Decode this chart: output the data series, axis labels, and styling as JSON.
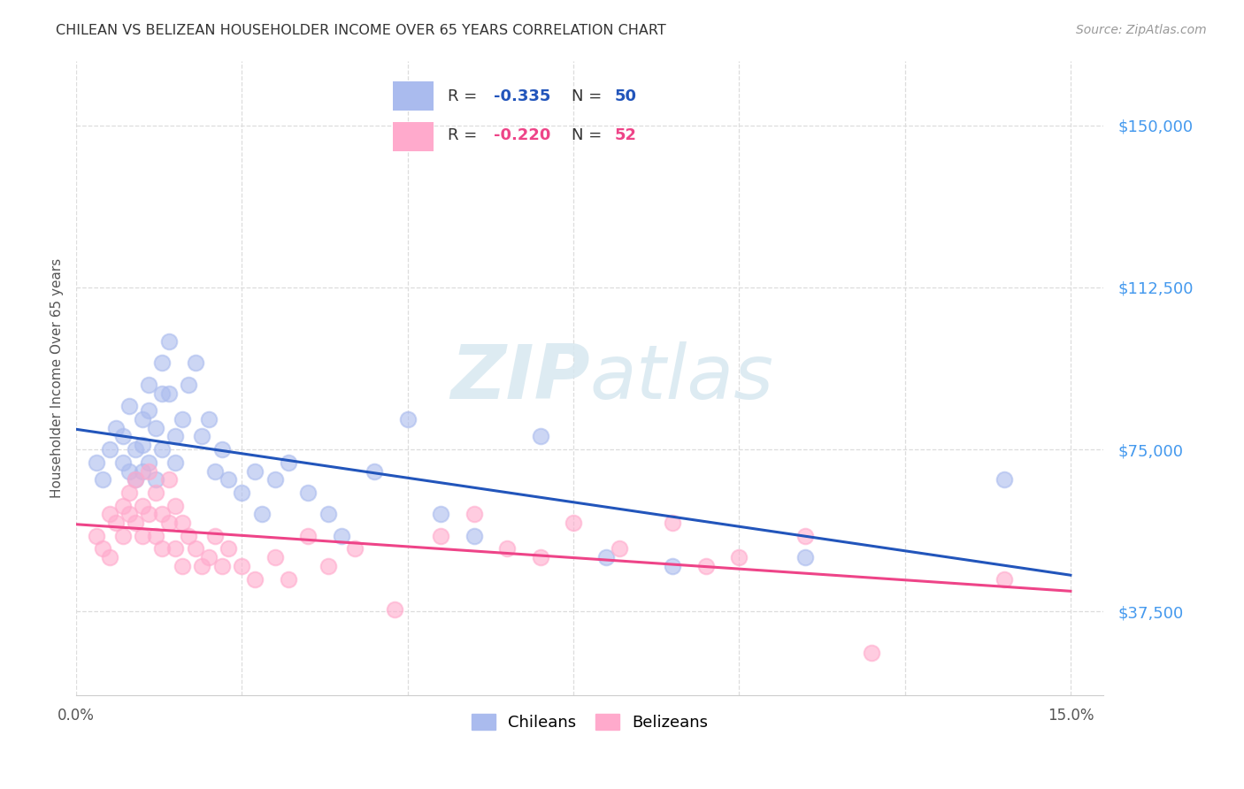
{
  "title": "CHILEAN VS BELIZEAN HOUSEHOLDER INCOME OVER 65 YEARS CORRELATION CHART",
  "source": "Source: ZipAtlas.com",
  "ylabel": "Householder Income Over 65 years",
  "ytick_labels": [
    "$37,500",
    "$75,000",
    "$112,500",
    "$150,000"
  ],
  "ytick_values": [
    37500,
    75000,
    112500,
    150000
  ],
  "ylim": [
    18000,
    165000
  ],
  "xlim": [
    0.0,
    0.155
  ],
  "chilean_color": "#aabbee",
  "belizean_color": "#ffaacc",
  "chilean_line_color": "#2255bb",
  "belizean_line_color": "#ee4488",
  "watermark_color": "#d8e8f0",
  "legend_border_color": "#cccccc",
  "grid_color": "#dddddd",
  "ytick_color": "#4499ee",
  "title_color": "#333333",
  "source_color": "#999999",
  "chilean_x": [
    0.003,
    0.004,
    0.005,
    0.006,
    0.007,
    0.007,
    0.008,
    0.008,
    0.009,
    0.009,
    0.01,
    0.01,
    0.01,
    0.011,
    0.011,
    0.011,
    0.012,
    0.012,
    0.013,
    0.013,
    0.013,
    0.014,
    0.014,
    0.015,
    0.015,
    0.016,
    0.017,
    0.018,
    0.019,
    0.02,
    0.021,
    0.022,
    0.023,
    0.025,
    0.027,
    0.028,
    0.03,
    0.032,
    0.035,
    0.038,
    0.04,
    0.045,
    0.05,
    0.055,
    0.06,
    0.07,
    0.08,
    0.09,
    0.11,
    0.14
  ],
  "chilean_y": [
    72000,
    68000,
    75000,
    80000,
    78000,
    72000,
    85000,
    70000,
    75000,
    68000,
    82000,
    76000,
    70000,
    90000,
    84000,
    72000,
    80000,
    68000,
    95000,
    88000,
    75000,
    100000,
    88000,
    78000,
    72000,
    82000,
    90000,
    95000,
    78000,
    82000,
    70000,
    75000,
    68000,
    65000,
    70000,
    60000,
    68000,
    72000,
    65000,
    60000,
    55000,
    70000,
    82000,
    60000,
    55000,
    78000,
    50000,
    48000,
    50000,
    68000
  ],
  "belizean_x": [
    0.003,
    0.004,
    0.005,
    0.005,
    0.006,
    0.007,
    0.007,
    0.008,
    0.008,
    0.009,
    0.009,
    0.01,
    0.01,
    0.011,
    0.011,
    0.012,
    0.012,
    0.013,
    0.013,
    0.014,
    0.014,
    0.015,
    0.015,
    0.016,
    0.016,
    0.017,
    0.018,
    0.019,
    0.02,
    0.021,
    0.022,
    0.023,
    0.025,
    0.027,
    0.03,
    0.032,
    0.035,
    0.038,
    0.042,
    0.048,
    0.055,
    0.06,
    0.065,
    0.07,
    0.075,
    0.082,
    0.09,
    0.095,
    0.1,
    0.11,
    0.12,
    0.14
  ],
  "belizean_y": [
    55000,
    52000,
    60000,
    50000,
    58000,
    62000,
    55000,
    65000,
    60000,
    68000,
    58000,
    62000,
    55000,
    70000,
    60000,
    65000,
    55000,
    60000,
    52000,
    68000,
    58000,
    62000,
    52000,
    58000,
    48000,
    55000,
    52000,
    48000,
    50000,
    55000,
    48000,
    52000,
    48000,
    45000,
    50000,
    45000,
    55000,
    48000,
    52000,
    38000,
    55000,
    60000,
    52000,
    50000,
    58000,
    52000,
    58000,
    48000,
    50000,
    55000,
    28000,
    45000
  ]
}
